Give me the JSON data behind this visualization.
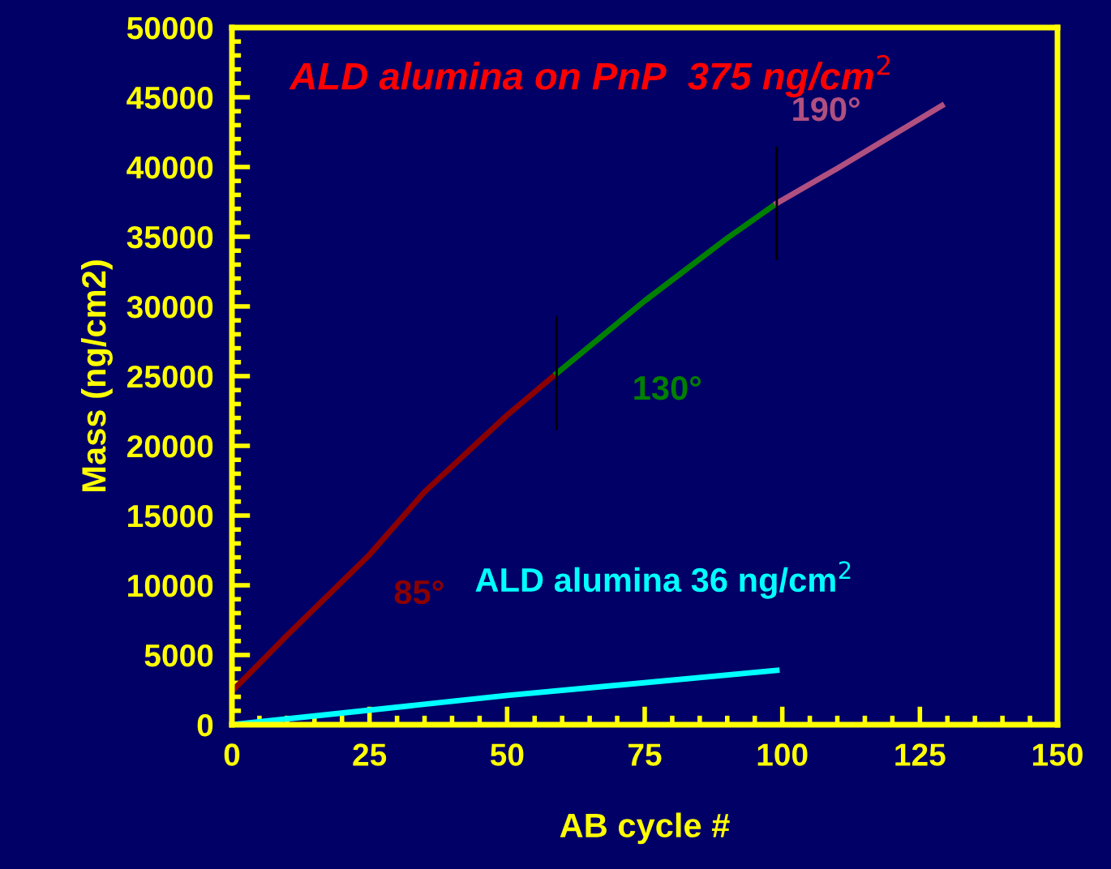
{
  "chart_data": {
    "type": "line",
    "xlabel": "AB cycle #",
    "ylabel": "Mass (ng/cm2)",
    "xlim": [
      0,
      150
    ],
    "xticks": [
      0,
      25,
      50,
      75,
      100,
      125,
      150
    ],
    "ylim": [
      0,
      50000
    ],
    "yticks": [
      0,
      5000,
      10000,
      15000,
      20000,
      25000,
      30000,
      35000,
      40000,
      45000,
      50000
    ],
    "grid": false,
    "legend": false,
    "marker": "none",
    "line_style": "solid",
    "annotations": [
      "ALD alumina on PnP  375 ng/cm$^{2}$"
    ],
    "ref_lines": [
      {
        "axis": "x",
        "value": 59,
        "color": "#000000"
      },
      {
        "axis": "x",
        "value": 99,
        "color": "#000000"
      }
    ],
    "series": [
      {
        "name": "85°",
        "color": "#8b0000",
        "x": [
          0,
          10,
          25,
          35,
          50,
          59
        ],
        "values": [
          2400,
          6400,
          12200,
          16700,
          22200,
          25200
        ]
      },
      {
        "name": "130°",
        "color": "#008000",
        "x": [
          59,
          75,
          90,
          99
        ],
        "values": [
          25200,
          30400,
          34900,
          37400
        ]
      },
      {
        "name": "190°",
        "color": "#b05080",
        "x": [
          99,
          110,
          129
        ],
        "values": [
          37400,
          39900,
          44400
        ]
      },
      {
        "name": "ALD alumina 36 ng/cm$^{2}$",
        "color": "#00ffff",
        "x": [
          0,
          50,
          99
        ],
        "values": [
          0,
          2100,
          3900
        ]
      }
    ]
  }
}
